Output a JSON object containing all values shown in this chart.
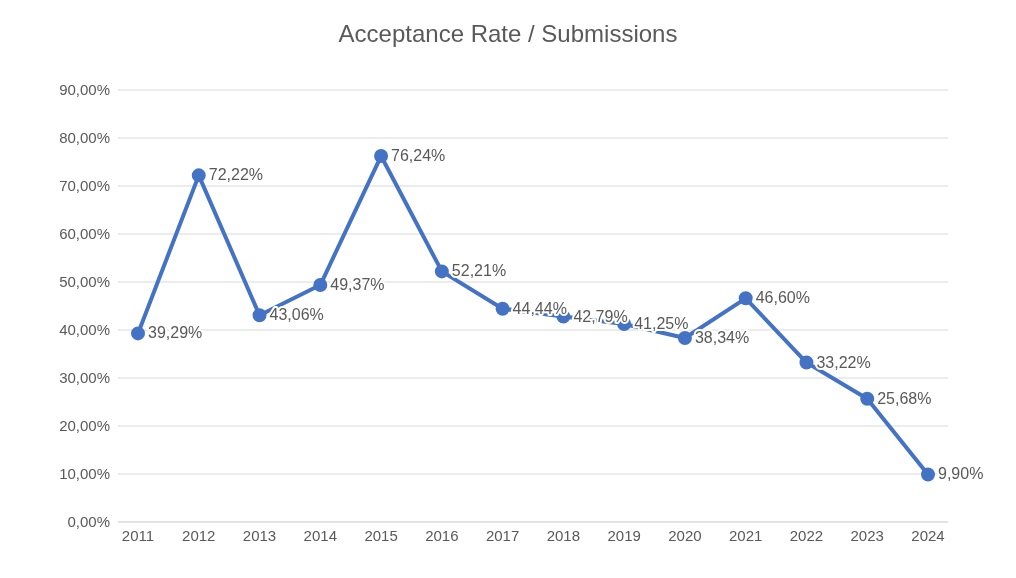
{
  "chart_data": {
    "type": "line",
    "title": "Acceptance Rate / Submissions",
    "categories": [
      "2011",
      "2012",
      "2013",
      "2014",
      "2015",
      "2016",
      "2017",
      "2018",
      "2019",
      "2020",
      "2021",
      "2022",
      "2023",
      "2024"
    ],
    "series": [
      {
        "color": "#4472c4",
        "values": [
          39.29,
          72.22,
          43.06,
          49.37,
          76.24,
          52.21,
          44.44,
          42.79,
          41.25,
          38.34,
          46.6,
          33.22,
          25.68,
          9.9
        ]
      }
    ],
    "value_labels": [
      "39,29%",
      "72,22%",
      "43,06%",
      "49,37%",
      "76,24%",
      "52,21%",
      "44,44%",
      "42,79%",
      "41,25%",
      "38,34%",
      "46,60%",
      "33,22%",
      "25,68%",
      "9,90%"
    ],
    "ylim": [
      0,
      90
    ],
    "yticks": [
      {
        "value": 0,
        "label": "0,00%"
      },
      {
        "value": 10,
        "label": "10,00%"
      },
      {
        "value": 20,
        "label": "20,00%"
      },
      {
        "value": 30,
        "label": "30,00%"
      },
      {
        "value": 40,
        "label": "40,00%"
      },
      {
        "value": 50,
        "label": "50,00%"
      },
      {
        "value": 60,
        "label": "60,00%"
      },
      {
        "value": 70,
        "label": "70,00%"
      },
      {
        "value": 80,
        "label": "80,00%"
      },
      {
        "value": 90,
        "label": "90,00%"
      }
    ],
    "grid": "y",
    "marker": "circle",
    "line_style": "solid"
  }
}
